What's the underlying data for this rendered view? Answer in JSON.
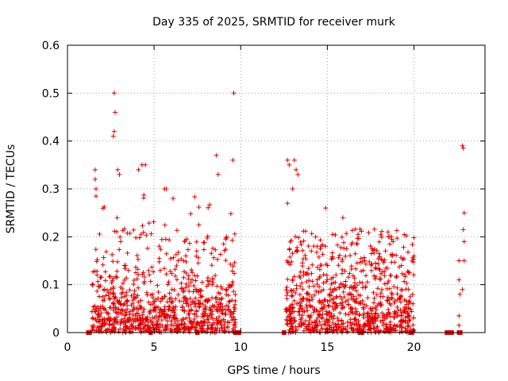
{
  "chart_data": {
    "type": "scatter",
    "title": "Day 335 of 2025, SRMTID for receiver murk",
    "xlabel": "GPS time / hours",
    "ylabel": "SRMTID / TECUs",
    "xlim": [
      0,
      24.1
    ],
    "ylim": [
      0,
      0.6
    ],
    "xticks": [
      0,
      5,
      10,
      15,
      20
    ],
    "xtick_labels": [
      "0",
      "5",
      "10",
      "15",
      "20"
    ],
    "yticks": [
      0,
      0.1,
      0.2,
      0.3,
      0.4,
      0.5,
      0.6
    ],
    "ytick_labels": [
      "0",
      "0.1",
      "0.2",
      "0.3",
      "0.4",
      "0.5",
      "0.6"
    ],
    "grid": true,
    "marker": "+",
    "marker_color": "#dd0000",
    "zero_segments": [
      [
        1.1,
        1.4
      ],
      [
        4.7,
        4.9
      ],
      [
        7.4,
        7.6
      ],
      [
        9.6,
        10.0
      ],
      [
        12.4,
        12.6
      ],
      [
        16.8,
        17.1
      ],
      [
        19.7,
        20.0
      ],
      [
        21.8,
        22.3
      ],
      [
        22.5,
        22.8
      ]
    ],
    "clusters": [
      {
        "x_start": 1.4,
        "x_end": 9.7,
        "count": 900,
        "typical": 0.07,
        "peak": 0.24
      },
      {
        "x_start": 12.6,
        "x_end": 20.0,
        "count": 850,
        "typical": 0.08,
        "peak": 0.18
      }
    ],
    "highlights": [
      {
        "x": 2.7,
        "y": 0.5
      },
      {
        "x": 2.75,
        "y": 0.46
      },
      {
        "x": 2.7,
        "y": 0.42
      },
      {
        "x": 2.65,
        "y": 0.41
      },
      {
        "x": 9.6,
        "y": 0.5
      },
      {
        "x": 9.55,
        "y": 0.36
      },
      {
        "x": 8.6,
        "y": 0.37
      },
      {
        "x": 8.7,
        "y": 0.33
      },
      {
        "x": 4.3,
        "y": 0.35
      },
      {
        "x": 4.5,
        "y": 0.35
      },
      {
        "x": 4.1,
        "y": 0.34
      },
      {
        "x": 1.6,
        "y": 0.34
      },
      {
        "x": 1.6,
        "y": 0.32
      },
      {
        "x": 1.65,
        "y": 0.3
      },
      {
        "x": 1.65,
        "y": 0.285
      },
      {
        "x": 3.0,
        "y": 0.33
      },
      {
        "x": 2.9,
        "y": 0.34
      },
      {
        "x": 5.6,
        "y": 0.3
      },
      {
        "x": 5.7,
        "y": 0.3
      },
      {
        "x": 6.1,
        "y": 0.28
      },
      {
        "x": 12.7,
        "y": 0.36
      },
      {
        "x": 12.8,
        "y": 0.35
      },
      {
        "x": 13.1,
        "y": 0.36
      },
      {
        "x": 13.2,
        "y": 0.34
      },
      {
        "x": 13.3,
        "y": 0.33
      },
      {
        "x": 12.7,
        "y": 0.27
      },
      {
        "x": 13.0,
        "y": 0.3
      },
      {
        "x": 15.9,
        "y": 0.24
      },
      {
        "x": 14.9,
        "y": 0.26
      },
      {
        "x": 18.7,
        "y": 0.2
      },
      {
        "x": 18.8,
        "y": 0.19
      },
      {
        "x": 20.0,
        "y": 0.16
      },
      {
        "x": 22.8,
        "y": 0.39
      },
      {
        "x": 22.85,
        "y": 0.385
      },
      {
        "x": 22.9,
        "y": 0.25
      },
      {
        "x": 22.85,
        "y": 0.215
      },
      {
        "x": 22.9,
        "y": 0.19
      },
      {
        "x": 22.9,
        "y": 0.15
      },
      {
        "x": 22.6,
        "y": 0.15
      },
      {
        "x": 22.6,
        "y": 0.11
      },
      {
        "x": 22.8,
        "y": 0.09
      },
      {
        "x": 22.65,
        "y": 0.08
      },
      {
        "x": 22.6,
        "y": 0.035
      },
      {
        "x": 22.6,
        "y": 0.015
      }
    ]
  }
}
